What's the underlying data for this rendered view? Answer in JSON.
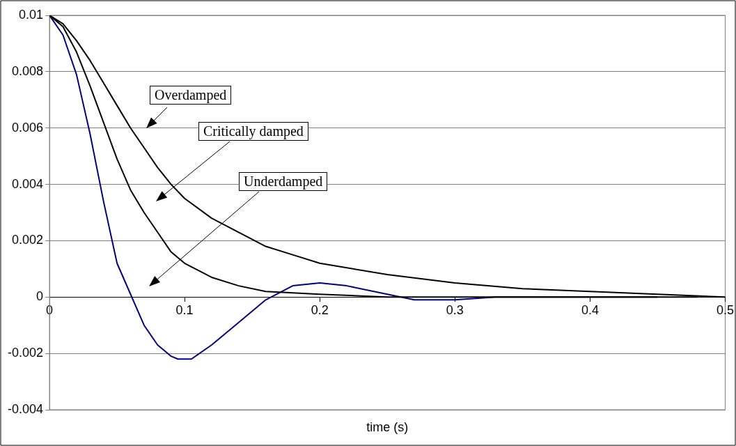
{
  "chart_data": {
    "type": "line",
    "xlabel": "time (s)",
    "marker": "none",
    "grid": "y",
    "legend": false,
    "xlim": [
      0,
      0.5
    ],
    "xticks": [
      0,
      0.1,
      0.2,
      0.3,
      0.4,
      0.5
    ],
    "ylim": [
      -0.004,
      0.01
    ],
    "yticks": [
      -0.004,
      -0.002,
      0,
      0.002,
      0.004,
      0.006,
      0.008,
      0.01
    ],
    "series": [
      {
        "color": "#000000",
        "x": [
          0,
          0.01,
          0.02,
          0.03,
          0.04,
          0.05,
          0.06,
          0.07,
          0.08,
          0.09,
          0.1,
          0.12,
          0.14,
          0.16,
          0.18,
          0.2,
          0.25,
          0.3,
          0.35,
          0.4,
          0.45,
          0.5
        ],
        "values": [
          0.01,
          0.0097,
          0.0091,
          0.0084,
          0.0076,
          0.0068,
          0.006,
          0.0053,
          0.0046,
          0.004,
          0.0035,
          0.0028,
          0.0023,
          0.0018,
          0.0015,
          0.0012,
          0.0008,
          0.0005,
          0.0003,
          0.0002,
          0.0001,
          0
        ]
      },
      {
        "color": "#000000",
        "x": [
          0,
          0.01,
          0.02,
          0.03,
          0.04,
          0.05,
          0.06,
          0.07,
          0.08,
          0.09,
          0.1,
          0.12,
          0.14,
          0.16,
          0.2,
          0.25,
          0.48
        ],
        "values": [
          0.01,
          0.0096,
          0.0087,
          0.0075,
          0.0062,
          0.0049,
          0.0038,
          0.003,
          0.0023,
          0.0016,
          0.0012,
          0.0007,
          0.0004,
          0.0002,
          0.0001,
          0,
          0
        ]
      },
      {
        "color": "#000080",
        "x": [
          0,
          0.01,
          0.02,
          0.03,
          0.04,
          0.05,
          0.06,
          0.07,
          0.08,
          0.09,
          0.095,
          0.105,
          0.12,
          0.14,
          0.16,
          0.18,
          0.2,
          0.22,
          0.25,
          0.27,
          0.3,
          0.33,
          0.4,
          0.45
        ],
        "values": [
          0.01,
          0.0093,
          0.0079,
          0.0058,
          0.0034,
          0.0012,
          0.0001,
          -0.001,
          -0.0017,
          -0.0021,
          -0.0022,
          -0.0022,
          -0.0017,
          -0.0009,
          -0.0001,
          0.0004,
          0.0005,
          0.0004,
          0.0001,
          -0.0001,
          -0.0001,
          0,
          0,
          0
        ]
      }
    ],
    "annotations": [
      "Overdamped",
      "Critically damped",
      "Underdamped"
    ]
  }
}
